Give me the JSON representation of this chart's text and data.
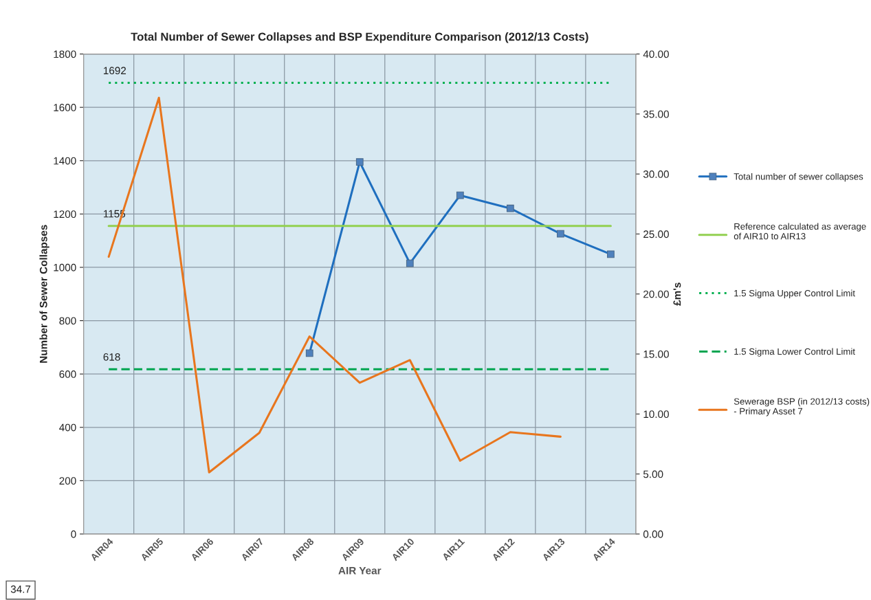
{
  "chart_data": {
    "type": "line",
    "title": "Total Number of Sewer Collapses and BSP Expenditure Comparison (2012/13 Costs)",
    "xlabel": "AIR Year",
    "ylabel": "Number of Sewer Collapses",
    "y2label": "£m's",
    "categories": [
      "AIR04",
      "AIR05",
      "AIR06",
      "AIR07",
      "AIR08",
      "AIR09",
      "AIR10",
      "AIR11",
      "AIR12",
      "AIR13",
      "AIR14"
    ],
    "series": [
      {
        "name": "Total number of sewer collapses",
        "color": "#1f6fbf",
        "marker": "square",
        "line_style": "solid",
        "values": [
          null,
          null,
          null,
          null,
          678,
          1395,
          1015,
          1270,
          1221,
          1126,
          1049
        ]
      },
      {
        "name": "Reference calculated as average of AIR10 to AIR13",
        "color": "#92d050",
        "marker": "none",
        "line_style": "solid",
        "values": [
          1155,
          1155,
          1155,
          1155,
          1155,
          1155,
          1155,
          1155,
          1155,
          1155,
          1155
        ],
        "value_labels": [
          "1155",
          null,
          null,
          null,
          null,
          null,
          null,
          null,
          null,
          null,
          null
        ]
      },
      {
        "name": "1.5 Sigma Upper Control Limit",
        "color": "#00b050",
        "marker": "none",
        "line_style": "dotted",
        "values": [
          1692,
          1692,
          1692,
          1692,
          1692,
          1692,
          1692,
          1692,
          1692,
          1692,
          1692
        ],
        "value_labels": [
          "1692",
          null,
          null,
          null,
          null,
          null,
          null,
          null,
          null,
          null,
          null
        ]
      },
      {
        "name": "1.5 Sigma Lower Control Limit",
        "color": "#00a550",
        "marker": "none",
        "line_style": "dashed",
        "values": [
          618,
          618,
          618,
          618,
          618,
          618,
          618,
          618,
          618,
          618,
          618
        ],
        "value_labels": [
          "618",
          null,
          null,
          null,
          null,
          null,
          null,
          null,
          null,
          null,
          null
        ]
      },
      {
        "name": "Sewerage BSP (in 2012/13 costs) - Primary Asset 7",
        "color": "#e8761e",
        "marker": "none",
        "line_style": "solid",
        "axis": "y2",
        "values": [
          23.1,
          36.35,
          5.14,
          8.43,
          16.46,
          12.6,
          14.49,
          6.11,
          8.49,
          8.11,
          null
        ]
      }
    ],
    "ylim": [
      0,
      1800
    ],
    "yticks": [
      0,
      200,
      400,
      600,
      800,
      1000,
      1200,
      1400,
      1600,
      1800
    ],
    "y2lim": [
      0,
      40
    ],
    "y2ticks": [
      {
        "value": 0,
        "label": "0.00"
      },
      {
        "value": 5,
        "label": "5.00"
      },
      {
        "value": 10,
        "label": "10.00"
      },
      {
        "value": 15,
        "label": "15.00"
      },
      {
        "value": 20,
        "label": "20.00"
      },
      {
        "value": 25,
        "label": "25.00"
      },
      {
        "value": 30,
        "label": "30.00"
      },
      {
        "value": 35,
        "label": "35.00"
      },
      {
        "value": 40,
        "label": "40.00"
      }
    ],
    "grid": true,
    "legend": "right",
    "annotations": [
      "34.7"
    ]
  }
}
